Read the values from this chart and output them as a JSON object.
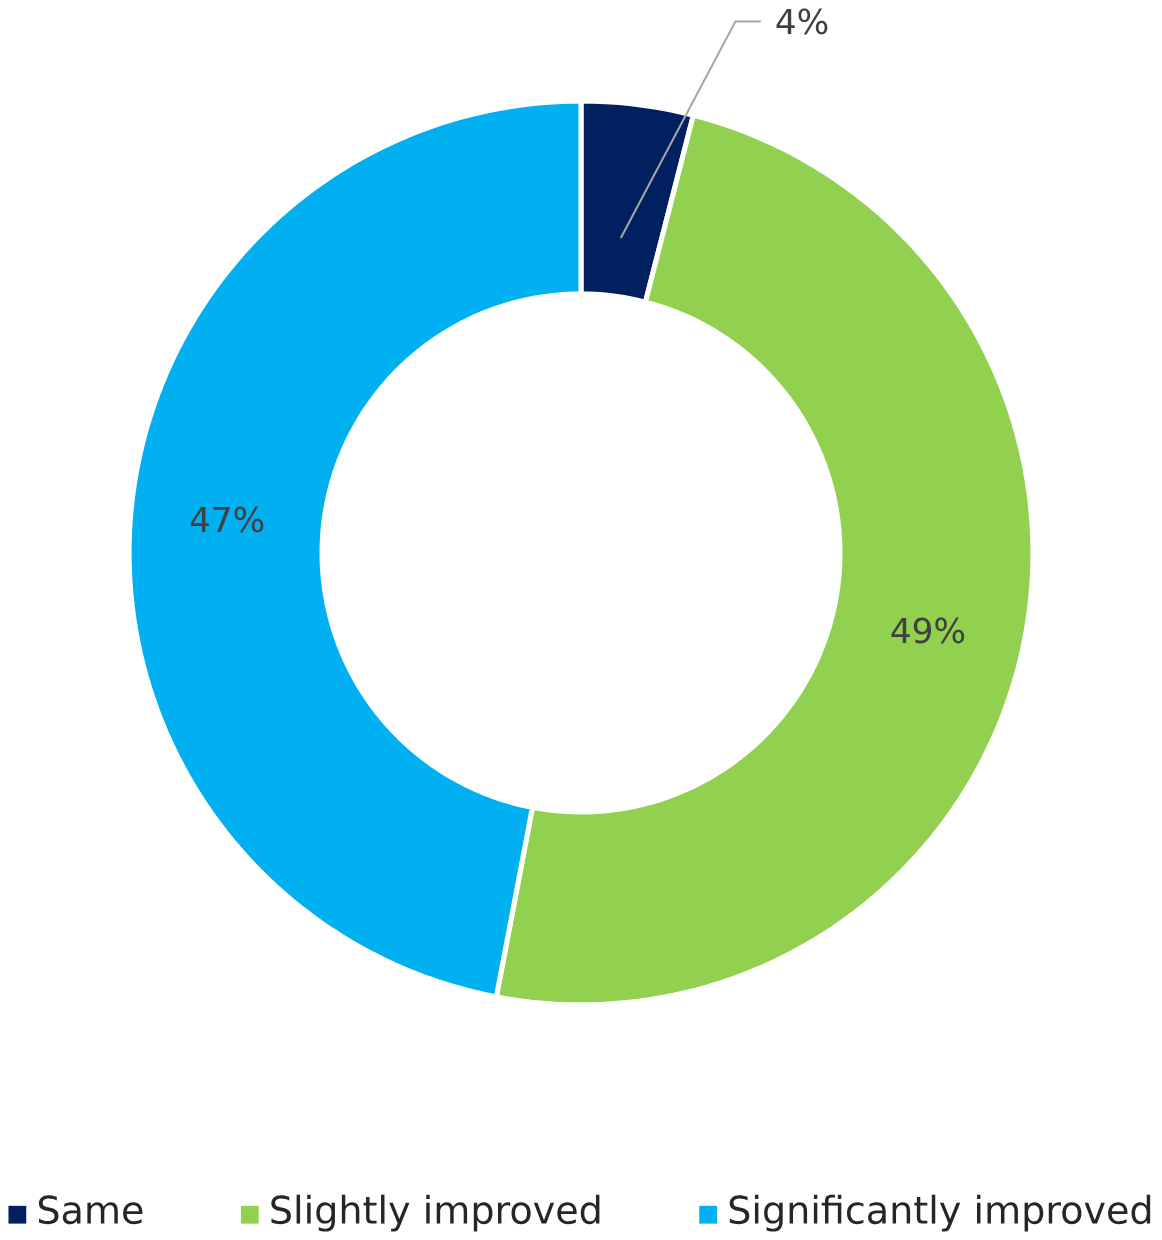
{
  "chart_data": {
    "type": "donut",
    "categories": [
      "Same",
      "Slightly improved",
      "Significantly improved"
    ],
    "values": [
      4,
      49,
      47
    ],
    "colors": [
      "#002060",
      "#92d050",
      "#00b0f0"
    ],
    "value_labels": [
      "4%",
      "49%",
      "47%"
    ],
    "legend": "bottom"
  }
}
